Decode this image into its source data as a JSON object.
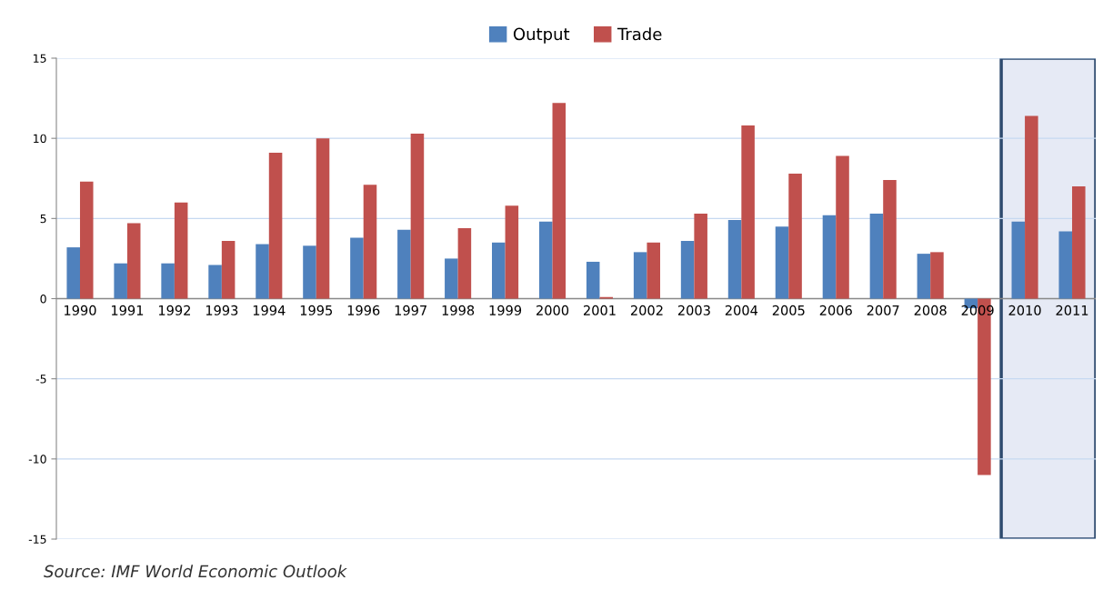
{
  "chart_data": {
    "type": "bar",
    "categories": [
      "1990",
      "1991",
      "1992",
      "1993",
      "1994",
      "1995",
      "1996",
      "1997",
      "1998",
      "1999",
      "2000",
      "2001",
      "2002",
      "2003",
      "2004",
      "2005",
      "2006",
      "2007",
      "2008",
      "2009",
      "2010",
      "2011"
    ],
    "series": [
      {
        "name": "Output",
        "color": "#4f81bd",
        "values": [
          3.2,
          2.2,
          2.2,
          2.1,
          3.4,
          3.3,
          3.8,
          4.3,
          2.5,
          3.5,
          4.8,
          2.3,
          2.9,
          3.6,
          4.9,
          4.5,
          5.2,
          5.3,
          2.8,
          -0.6,
          4.8,
          4.2
        ]
      },
      {
        "name": "Trade",
        "color": "#c0504d",
        "values": [
          7.3,
          4.7,
          6.0,
          3.6,
          9.1,
          10.0,
          7.1,
          10.3,
          4.4,
          5.8,
          12.2,
          0.1,
          3.5,
          5.3,
          10.8,
          7.8,
          8.9,
          7.4,
          2.9,
          -11.0,
          11.4,
          7.0
        ]
      }
    ],
    "ylim": [
      -15,
      15
    ],
    "yticks": [
      {
        "value": -15,
        "label": "-15"
      },
      {
        "value": -10,
        "label": "-10"
      },
      {
        "value": -5,
        "label": "-5"
      },
      0,
      5,
      10,
      15
    ],
    "grid": "y",
    "legend": "top",
    "bands": [
      {
        "axis": "x",
        "from": "2010",
        "to": "2011",
        "color": "#e6eaf5"
      }
    ],
    "annotations": [
      "Source: IMF World Economic Outlook"
    ]
  }
}
